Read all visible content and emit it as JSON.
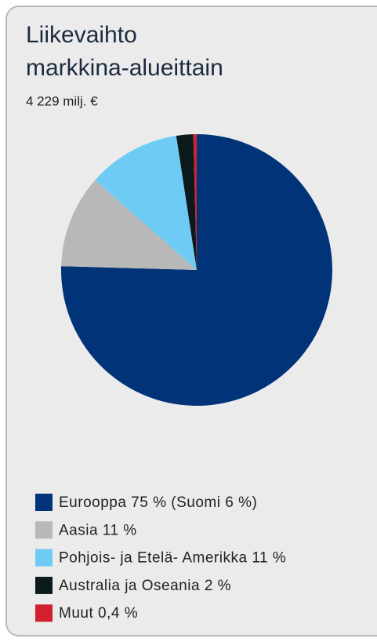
{
  "chart_data": {
    "type": "pie",
    "title_lines": [
      "Liikevaihto",
      "markkina-alueittain"
    ],
    "subtitle": "4 229 milj. €",
    "categories": [
      "Eurooppa 75 % (Suomi 6 %)",
      "Aasia 11 %",
      "Pohjois- ja Etelä- Amerikka 11 %",
      "Australia ja Oseania 2 %",
      "Muut 0,4 %"
    ],
    "values": [
      75,
      11,
      11,
      2,
      0.4
    ],
    "colors": [
      "#003378",
      "#b8b8b8",
      "#6ecbf4",
      "#0b1a1c",
      "#d2202f"
    ],
    "legend": "bottom"
  }
}
